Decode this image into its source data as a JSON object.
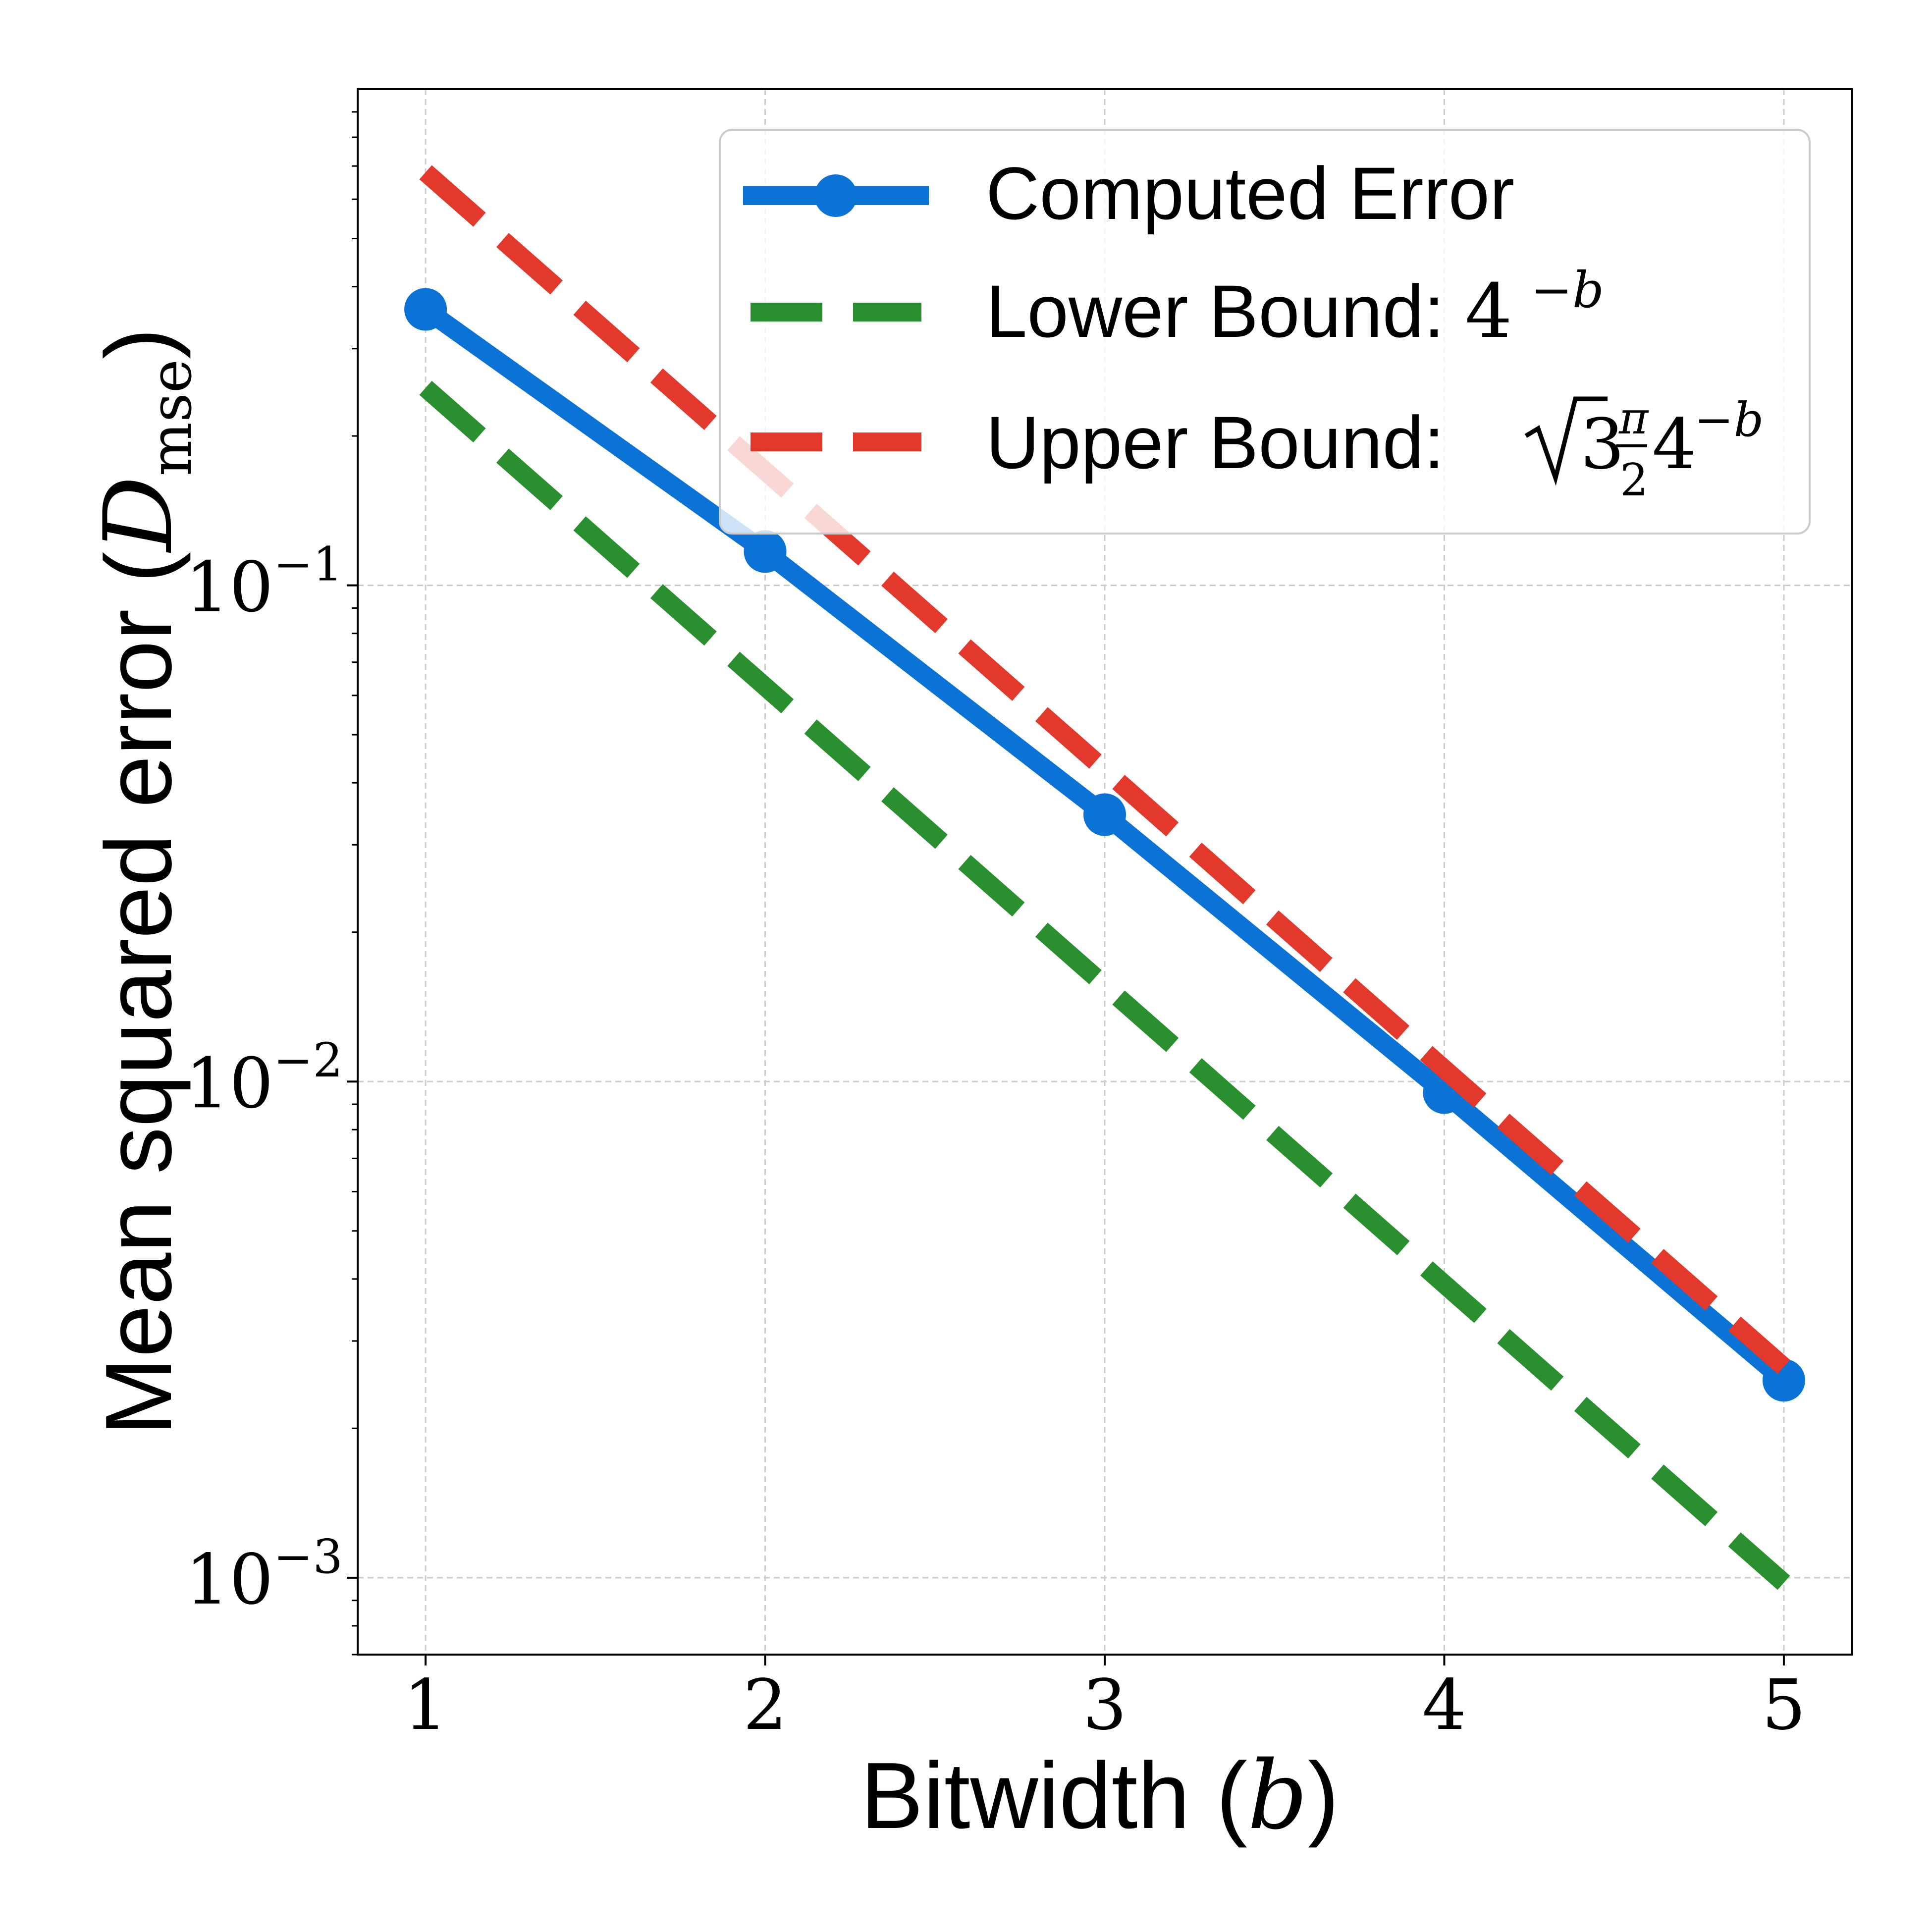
{
  "chart_data": {
    "type": "line",
    "title": "",
    "xlabel": "Bitwidth (",
    "xlabel_var": "b",
    "xlabel_close": ")",
    "ylabel": "Mean squared error (",
    "ylabel_var": "D",
    "ylabel_sub": "mse",
    "ylabel_close": ")",
    "yscale": "log",
    "xlim": [
      0.8,
      5.2
    ],
    "ylim": [
      0.0007,
      1.0
    ],
    "grid": true,
    "legend_position": "top-right",
    "x": [
      1,
      2,
      3,
      4,
      5
    ],
    "x_tick_labels": [
      "1",
      "2",
      "3",
      "4",
      "5"
    ],
    "y_ticks": [
      {
        "value": 0.1,
        "base": "10",
        "exp": "−1"
      },
      {
        "value": 0.01,
        "base": "10",
        "exp": "−2"
      },
      {
        "value": 0.001,
        "base": "10",
        "exp": "−3"
      }
    ],
    "series": [
      {
        "name": "Computed Error",
        "values": [
          0.36,
          0.117,
          0.0345,
          0.0095,
          0.0025
        ],
        "color": "#0b72d6",
        "style": "solid",
        "marker": "circle"
      },
      {
        "name": "Lower Bound: ",
        "name_math": "4",
        "name_math_sup": "−b",
        "values": [
          0.25,
          0.0625,
          0.015625,
          0.00390625,
          0.0009765625
        ],
        "color": "#2a8f2e",
        "style": "dashed",
        "marker": "none"
      },
      {
        "name": "Upper Bound: ",
        "name_math_upper": true,
        "values": [
          0.68,
          0.17,
          0.0425,
          0.0106,
          0.00266
        ],
        "color": "#e2392c",
        "style": "dashed",
        "marker": "none"
      }
    ]
  }
}
